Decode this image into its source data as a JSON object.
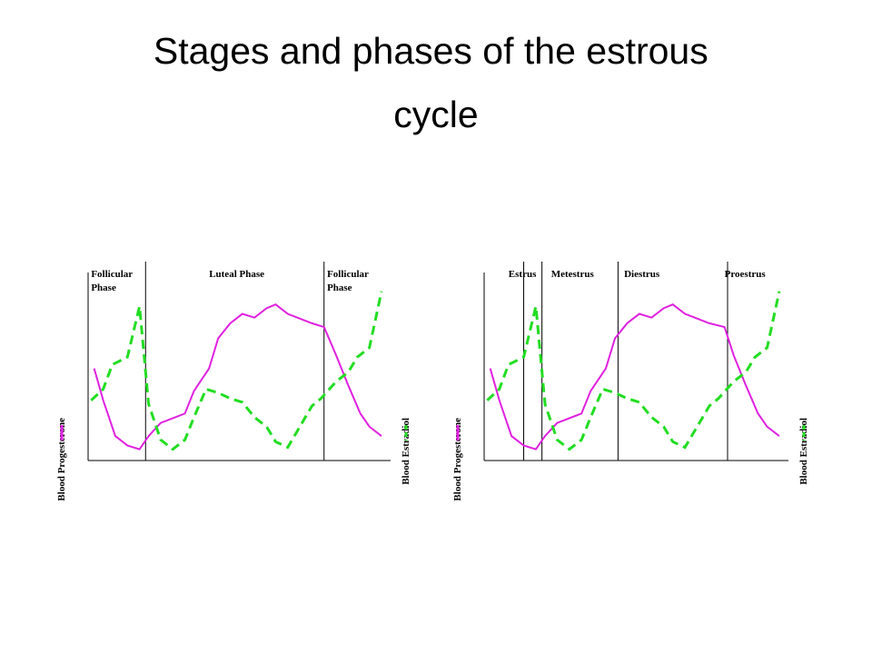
{
  "title": "Stages and phases of the estrous cycle",
  "chart_data": [
    {
      "type": "line",
      "xlim": [
        0,
        100
      ],
      "ylim": [
        0,
        100
      ],
      "y2lim": [
        0,
        100
      ],
      "dividers": [
        19,
        78
      ],
      "annotations": [
        {
          "text": "Follicular Phase",
          "x": 1,
          "wrap": true
        },
        {
          "text": "Luteal Phase",
          "x": 40,
          "wrap": false
        },
        {
          "text": "Follicular Phase",
          "x": 79,
          "wrap": true
        }
      ],
      "series": [
        {
          "name": "Blood Progesterone",
          "color": "#e020e0",
          "dash": false,
          "x": [
            2,
            5,
            9,
            13,
            17,
            20,
            24,
            32,
            35,
            40,
            43,
            47,
            51,
            55,
            59,
            62,
            66,
            74,
            78,
            82,
            86,
            90,
            93,
            97
          ],
          "values": [
            49,
            32,
            13,
            8,
            6,
            13,
            20,
            25,
            37,
            49,
            65,
            73,
            78,
            76,
            81,
            83,
            78,
            73,
            71,
            56,
            40,
            25,
            18,
            13
          ]
        },
        {
          "name": "Blood Estradiol",
          "color": "#22dd22",
          "dash": true,
          "axis": "y2",
          "x": [
            1,
            5,
            8,
            13,
            17,
            20,
            24,
            28,
            32,
            35,
            39,
            43,
            47,
            51,
            55,
            59,
            62,
            66,
            70,
            74,
            77,
            82,
            86,
            89,
            93,
            97
          ],
          "values": [
            32,
            38,
            51,
            55,
            82,
            30,
            11,
            6,
            11,
            23,
            38,
            36,
            33,
            31,
            23,
            18,
            10,
            7,
            18,
            29,
            33,
            42,
            47,
            55,
            60,
            90
          ]
        }
      ]
    },
    {
      "type": "line",
      "xlim": [
        0,
        100
      ],
      "ylim": [
        0,
        100
      ],
      "y2lim": [
        0,
        100
      ],
      "dividers": [
        13,
        19,
        44,
        80
      ],
      "annotations": [
        {
          "text": "Estrus",
          "x": 8,
          "wrap": false
        },
        {
          "text": "Metestrus",
          "x": 22,
          "wrap": false
        },
        {
          "text": "Diestrus",
          "x": 46,
          "wrap": false
        },
        {
          "text": "Proestrus",
          "x": 79,
          "wrap": false
        }
      ],
      "series": [
        {
          "name": "Blood Progesterone",
          "color": "#e020e0",
          "dash": false,
          "x": [
            2,
            5,
            9,
            13,
            17,
            20,
            24,
            32,
            35,
            40,
            43,
            47,
            51,
            55,
            59,
            62,
            66,
            74,
            79,
            82,
            86,
            90,
            93,
            97
          ],
          "values": [
            49,
            32,
            13,
            8,
            6,
            13,
            20,
            25,
            37,
            49,
            65,
            73,
            78,
            76,
            81,
            83,
            78,
            73,
            71,
            56,
            40,
            25,
            18,
            13
          ]
        },
        {
          "name": "Blood Estradiol",
          "color": "#22dd22",
          "dash": true,
          "axis": "y2",
          "x": [
            1,
            5,
            8,
            13,
            17,
            20,
            24,
            28,
            32,
            35,
            39,
            43,
            47,
            51,
            55,
            59,
            62,
            66,
            70,
            74,
            77,
            82,
            86,
            89,
            93,
            97
          ],
          "values": [
            32,
            38,
            51,
            55,
            82,
            30,
            11,
            6,
            11,
            23,
            38,
            36,
            33,
            31,
            23,
            18,
            10,
            7,
            18,
            29,
            33,
            42,
            47,
            55,
            60,
            90
          ]
        }
      ]
    }
  ]
}
